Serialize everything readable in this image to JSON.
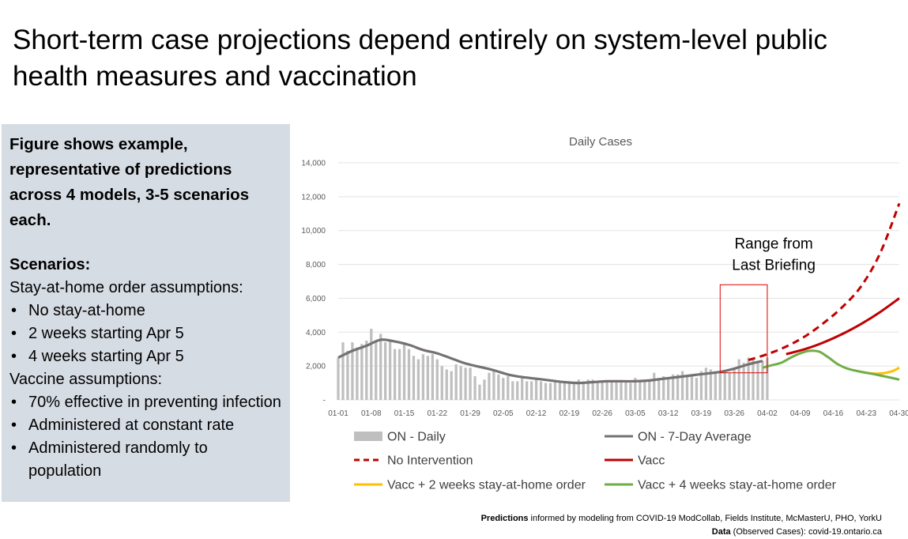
{
  "slide": {
    "title": "Short-term case projections depend entirely on system-level public health measures and vaccination"
  },
  "side_panel": {
    "figure_text": "Figure shows example, representative of predictions across 4 models, 3-5 scenarios each.",
    "scenarios_heading": "Scenarios:",
    "stay_at_home_heading": "Stay-at-home order assumptions:",
    "stay_at_home_items": [
      "No stay-at-home",
      "2 weeks starting Apr 5",
      "4 weeks starting Apr 5"
    ],
    "vaccine_heading": "Vaccine assumptions:",
    "vaccine_items": [
      "70% effective in preventing infection",
      "Administered at constant rate",
      "Administered randomly to population"
    ]
  },
  "footer": {
    "line1_bold": "Predictions",
    "line1_rest": " informed by modeling from COVID-19 ModCollab, Fields Institute, McMasterU, PHO, YorkU",
    "line2_bold": "Data",
    "line2_rest": " (Observed Cases): covid-19.ontario.ca"
  },
  "chart_data": {
    "type": "bar",
    "title": "Daily Cases",
    "xlabel": "",
    "ylabel": "",
    "ylim": [
      0,
      14000
    ],
    "yticks": [
      0,
      2000,
      4000,
      6000,
      8000,
      10000,
      12000,
      14000
    ],
    "ytick_labels": [
      "-",
      "2,000",
      "4,000",
      "6,000",
      "8,000",
      "10,000",
      "12,000",
      "14,000"
    ],
    "xlim": [
      "2021-01-01",
      "2021-04-30"
    ],
    "xtick_labels": [
      "01-01",
      "01-08",
      "01-15",
      "01-22",
      "01-29",
      "02-05",
      "02-12",
      "02-19",
      "02-26",
      "03-05",
      "03-12",
      "03-19",
      "03-26",
      "04-02",
      "04-09",
      "04-16",
      "04-23",
      "04-30"
    ],
    "xtick_dates": [
      "2021-01-01",
      "2021-01-08",
      "2021-01-15",
      "2021-01-22",
      "2021-01-29",
      "2021-02-05",
      "2021-02-12",
      "2021-02-19",
      "2021-02-26",
      "2021-03-05",
      "2021-03-12",
      "2021-03-19",
      "2021-03-26",
      "2021-04-02",
      "2021-04-09",
      "2021-04-16",
      "2021-04-23",
      "2021-04-30"
    ],
    "daily": {
      "name": "ON - Daily",
      "color": "#bfbfbf",
      "start_date": "2021-01-01",
      "values": [
        2500,
        3400,
        2900,
        3400,
        3100,
        3300,
        3500,
        4200,
        3400,
        3900,
        3400,
        3500,
        3000,
        3000,
        3400,
        3000,
        2600,
        2400,
        2700,
        2600,
        2700,
        2400,
        2000,
        1800,
        1700,
        2100,
        2000,
        1900,
        1900,
        1400,
        900,
        1200,
        1600,
        1700,
        1500,
        1300,
        1400,
        1100,
        1100,
        1400,
        1100,
        1100,
        1200,
        1100,
        1000,
        1000,
        1100,
        1000,
        1100,
        1100,
        1000,
        1200,
        1100,
        1200,
        1200,
        1100,
        1100,
        1100,
        1100,
        1100,
        1100,
        1100,
        1000,
        1300,
        1100,
        1100,
        1100,
        1600,
        1300,
        1400,
        1300,
        1500,
        1500,
        1700,
        1400,
        1400,
        1300,
        1700,
        1900,
        1800,
        1700,
        1700,
        1600,
        1600,
        1800,
        2400,
        2200,
        2500,
        2400,
        2300,
        2300,
        2500
      ]
    },
    "average": {
      "name": "ON - 7-Day Average",
      "color": "#767171",
      "points": [
        [
          "2021-01-01",
          2500
        ],
        [
          "2021-01-04",
          2900
        ],
        [
          "2021-01-07",
          3200
        ],
        [
          "2021-01-10",
          3550
        ],
        [
          "2021-01-13",
          3450
        ],
        [
          "2021-01-16",
          3250
        ],
        [
          "2021-01-19",
          2950
        ],
        [
          "2021-01-22",
          2750
        ],
        [
          "2021-01-25",
          2450
        ],
        [
          "2021-01-28",
          2150
        ],
        [
          "2021-01-31",
          1950
        ],
        [
          "2021-02-03",
          1750
        ],
        [
          "2021-02-06",
          1500
        ],
        [
          "2021-02-09",
          1350
        ],
        [
          "2021-02-12",
          1250
        ],
        [
          "2021-02-15",
          1150
        ],
        [
          "2021-02-18",
          1050
        ],
        [
          "2021-02-21",
          1000
        ],
        [
          "2021-02-24",
          1050
        ],
        [
          "2021-02-27",
          1100
        ],
        [
          "2021-03-02",
          1100
        ],
        [
          "2021-03-05",
          1100
        ],
        [
          "2021-03-08",
          1150
        ],
        [
          "2021-03-11",
          1250
        ],
        [
          "2021-03-14",
          1350
        ],
        [
          "2021-03-17",
          1450
        ],
        [
          "2021-03-20",
          1550
        ],
        [
          "2021-03-23",
          1650
        ],
        [
          "2021-03-26",
          1850
        ],
        [
          "2021-03-29",
          2100
        ],
        [
          "2021-04-01",
          2300
        ]
      ]
    },
    "series": [
      {
        "name": "No Intervention",
        "color": "#c00000",
        "dash": true,
        "points": [
          [
            "2021-03-29",
            2350
          ],
          [
            "2021-04-02",
            2700
          ],
          [
            "2021-04-06",
            3150
          ],
          [
            "2021-04-10",
            3750
          ],
          [
            "2021-04-14",
            4550
          ],
          [
            "2021-04-18",
            5500
          ],
          [
            "2021-04-22",
            6750
          ],
          [
            "2021-04-26",
            8700
          ],
          [
            "2021-04-30",
            11600
          ]
        ]
      },
      {
        "name": "Vacc",
        "color": "#c00000",
        "dash": false,
        "points": [
          [
            "2021-04-06",
            2700
          ],
          [
            "2021-04-10",
            3000
          ],
          [
            "2021-04-14",
            3400
          ],
          [
            "2021-04-18",
            3900
          ],
          [
            "2021-04-22",
            4500
          ],
          [
            "2021-04-26",
            5200
          ],
          [
            "2021-04-30",
            6000
          ]
        ]
      },
      {
        "name": "Vacc + 2 weeks stay-at-home order",
        "color": "#ffc000",
        "dash": false,
        "points": [
          [
            "2021-04-22",
            1650
          ],
          [
            "2021-04-25",
            1550
          ],
          [
            "2021-04-28",
            1650
          ],
          [
            "2021-04-30",
            1900
          ]
        ]
      },
      {
        "name": "Vacc + 4 weeks stay-at-home order",
        "color": "#70ad47",
        "dash": false,
        "points": [
          [
            "2021-04-01",
            1900
          ],
          [
            "2021-04-03",
            2050
          ],
          [
            "2021-04-05",
            2200
          ],
          [
            "2021-04-07",
            2500
          ],
          [
            "2021-04-09",
            2750
          ],
          [
            "2021-04-11",
            2900
          ],
          [
            "2021-04-13",
            2850
          ],
          [
            "2021-04-15",
            2500
          ],
          [
            "2021-04-17",
            2100
          ],
          [
            "2021-04-19",
            1850
          ],
          [
            "2021-04-22",
            1650
          ],
          [
            "2021-04-25",
            1500
          ],
          [
            "2021-04-30",
            1200
          ]
        ]
      }
    ],
    "annotation": {
      "text_lines": [
        "Range from",
        "Last Briefing"
      ],
      "color": "#e00000",
      "x_range": [
        "2021-03-23",
        "2021-04-02"
      ],
      "y_range": [
        1600,
        6800
      ]
    },
    "grid": true,
    "legend_position": "bottom"
  }
}
